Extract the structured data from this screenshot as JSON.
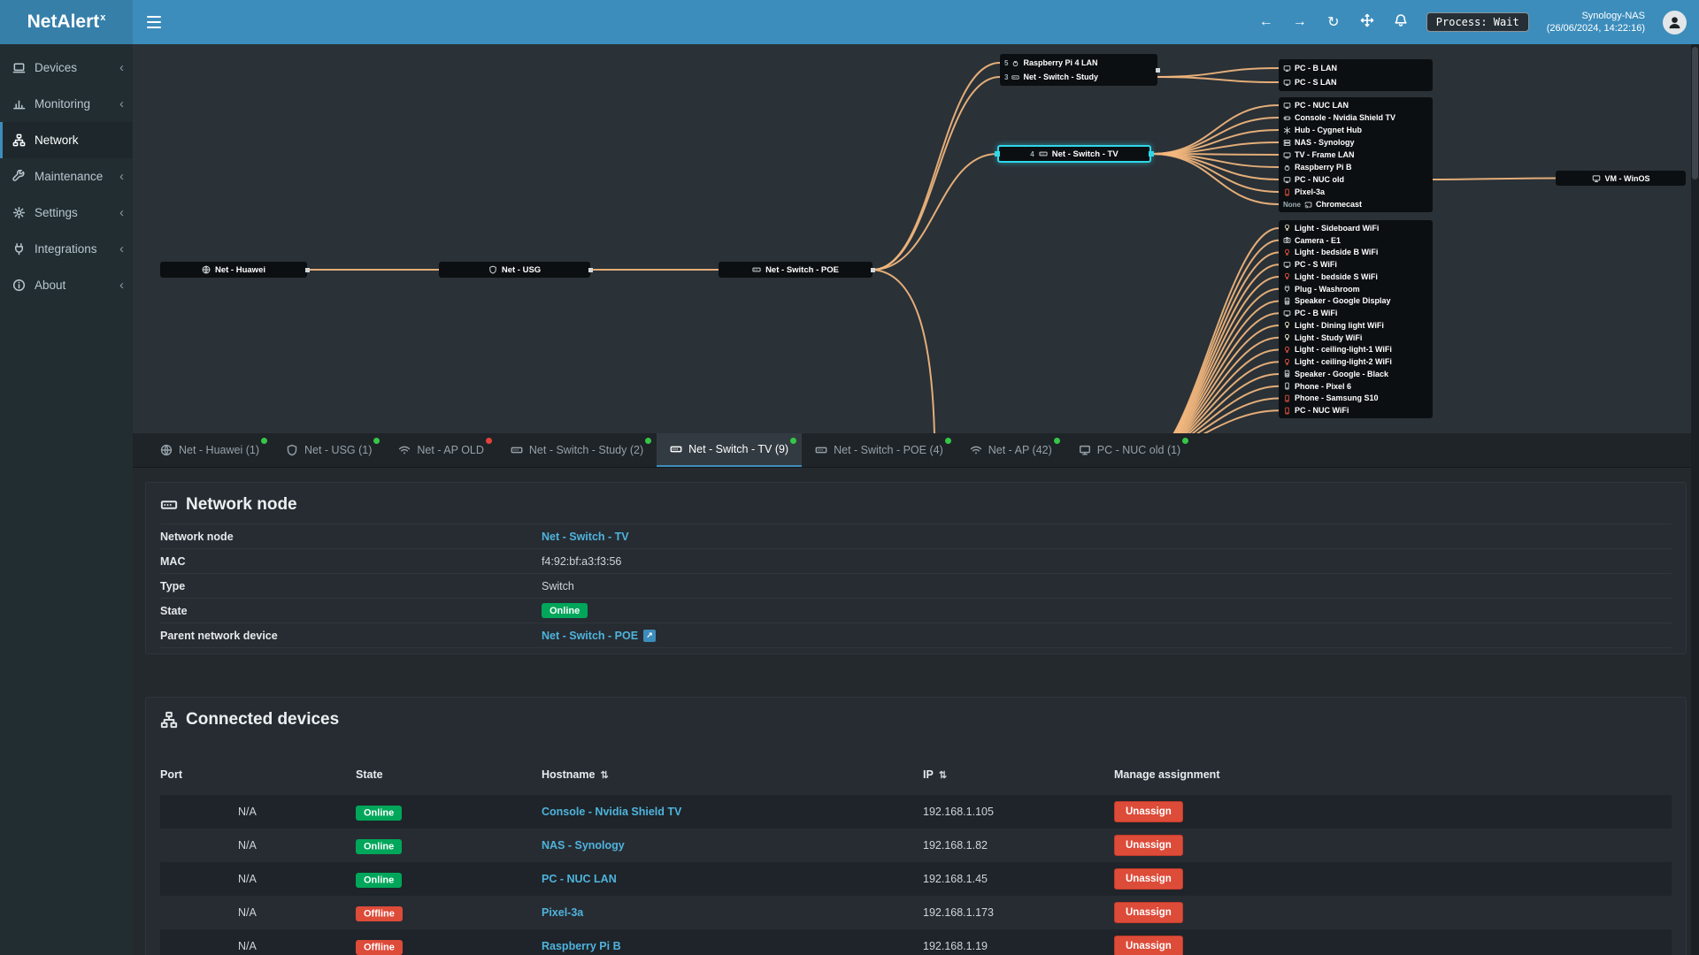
{
  "header": {
    "brand": "NetAlert",
    "brand_sup": "x",
    "nav": {
      "back": "←",
      "forward": "→",
      "refresh": "↻"
    },
    "process_label": "Process: Wait",
    "host_name": "Synology-NAS",
    "host_time": "(26/06/2024, 14:22:16)"
  },
  "sidebar": {
    "items": [
      {
        "label": "Devices",
        "icon_ref": "#i-devices",
        "chevron": "‹",
        "active": "false"
      },
      {
        "label": "Monitoring",
        "icon_ref": "#i-chart",
        "chevron": "‹",
        "active": "false"
      },
      {
        "label": "Network",
        "icon_ref": "#i-sitemap",
        "chevron": "",
        "active": "true"
      },
      {
        "label": "Maintenance",
        "icon_ref": "#i-wrench",
        "chevron": "‹",
        "active": "false"
      },
      {
        "label": "Settings",
        "icon_ref": "#i-gear",
        "chevron": "‹",
        "active": "false"
      },
      {
        "label": "Integrations",
        "icon_ref": "#i-plug",
        "chevron": "‹",
        "active": "false"
      },
      {
        "label": "About",
        "icon_ref": "#i-info",
        "chevron": "‹",
        "active": "false"
      }
    ]
  },
  "diagram": {
    "edge_color": "#f3b77e",
    "highlight_color": "#2fd7e9",
    "chain": [
      {
        "label": "Net - Huawei",
        "icon_ref": "#i-globe"
      },
      {
        "label": "Net - USG",
        "icon_ref": "#i-shield"
      },
      {
        "label": "Net - Switch - POE",
        "icon_ref": "#i-switch"
      }
    ],
    "highlight_node": {
      "port": "4",
      "label": "Net - Switch - TV",
      "icon_ref": "#i-switch"
    },
    "study_box": [
      {
        "port": "5",
        "label": "Raspberry Pi 4 LAN",
        "icon_ref": "#i-pi"
      },
      {
        "port": "3",
        "label": "Net - Switch - Study",
        "icon_ref": "#i-switch"
      }
    ],
    "lan_box": [
      {
        "label": "PC - B LAN",
        "icon_ref": "#i-desktop"
      },
      {
        "label": "PC - S LAN",
        "icon_ref": "#i-desktop"
      }
    ],
    "tv_box": [
      {
        "label": "PC - NUC LAN",
        "icon_ref": "#i-desktop"
      },
      {
        "label": "Console - Nvidia Shield TV",
        "icon_ref": "#i-gamepad"
      },
      {
        "label": "Hub - Cygnet Hub",
        "icon_ref": "#i-hub"
      },
      {
        "label": "NAS - Synology",
        "icon_ref": "#i-nas"
      },
      {
        "label": "TV - Frame LAN",
        "icon_ref": "#i-tv"
      },
      {
        "label": "Raspberry Pi B",
        "icon_ref": "#i-pi"
      },
      {
        "label": "PC - NUC old",
        "icon_ref": "#i-desktop"
      },
      {
        "label": "Pixel-3a",
        "icon_ref": "#i-phone",
        "icon_style": "color:#e25041"
      },
      {
        "port": "None",
        "label": "Chromecast",
        "icon_ref": "#i-cast"
      }
    ],
    "vm_node": {
      "label": "VM - WinOS",
      "icon_ref": "#i-desktop"
    },
    "wifi_box": [
      {
        "label": "Light - Sideboard WiFi",
        "icon_ref": "#i-bulb",
        "icon_style": "color:#e8e3c9"
      },
      {
        "label": "Camera - E1",
        "icon_ref": "#i-camera"
      },
      {
        "label": "Light - bedside B WiFi",
        "icon_ref": "#i-bulb",
        "icon_style": "color:#e25041"
      },
      {
        "label": "PC - S WiFi",
        "icon_ref": "#i-desktop"
      },
      {
        "label": "Light - bedside S WiFi",
        "icon_ref": "#i-bulb",
        "icon_style": "color:#e25041"
      },
      {
        "label": "Plug - Washroom",
        "icon_ref": "#i-plug"
      },
      {
        "label": "Speaker - Google Display",
        "icon_ref": "#i-speaker"
      },
      {
        "label": "PC - B WiFi",
        "icon_ref": "#i-desktop"
      },
      {
        "label": "Light - Dining light WiFi",
        "icon_ref": "#i-bulb",
        "icon_style": "color:#e8e3c9"
      },
      {
        "label": "Light - Study WiFi",
        "icon_ref": "#i-bulb",
        "icon_style": "color:#e8e3c9"
      },
      {
        "label": "Light - ceiling-light-1 WiFi",
        "icon_ref": "#i-bulb",
        "icon_style": "color:#e25041"
      },
      {
        "label": "Light - ceiling-light-2 WiFi",
        "icon_ref": "#i-bulb",
        "icon_style": "color:#e25041"
      },
      {
        "label": "Speaker - Google - Black",
        "icon_ref": "#i-speaker"
      },
      {
        "label": "Phone - Pixel 6",
        "icon_ref": "#i-phone"
      },
      {
        "label": "Phone - Samsung S10",
        "icon_ref": "#i-phone",
        "icon_style": "color:#e25041"
      },
      {
        "label": "PC - NUC WiFi",
        "icon_ref": "#i-phone",
        "icon_style": "color:#e25041"
      }
    ]
  },
  "tabs": [
    {
      "label": "Net - Huawei (1)",
      "icon_ref": "#i-globe",
      "dot": "green",
      "active": "false"
    },
    {
      "label": "Net - USG (1)",
      "icon_ref": "#i-shield",
      "dot": "green",
      "active": "false"
    },
    {
      "label": "Net - AP OLD",
      "icon_ref": "#i-wifi",
      "dot": "red",
      "active": "false"
    },
    {
      "label": "Net - Switch - Study (2)",
      "icon_ref": "#i-switch",
      "dot": "green",
      "active": "false"
    },
    {
      "label": "Net - Switch - TV (9)",
      "icon_ref": "#i-switch",
      "dot": "green",
      "active": "true"
    },
    {
      "label": "Net - Switch - POE (4)",
      "icon_ref": "#i-switch",
      "dot": "green",
      "active": "false"
    },
    {
      "label": "Net - AP (42)",
      "icon_ref": "#i-wifi",
      "dot": "green",
      "active": "false"
    },
    {
      "label": "PC - NUC old (1)",
      "icon_ref": "#i-desktop",
      "dot": "green",
      "active": "false"
    }
  ],
  "node_section": {
    "title": "Network node",
    "fields": [
      {
        "label": "Network node",
        "value": "Net - Switch - TV",
        "variant": "link",
        "clickable": "true"
      },
      {
        "label": "MAC",
        "value": "f4:92:bf:a3:f3:56",
        "variant": "text",
        "clickable": "false"
      },
      {
        "label": "Type",
        "value": "Switch",
        "variant": "text",
        "clickable": "false"
      },
      {
        "label": "State",
        "value": "Online",
        "variant": "badge-online",
        "clickable": "false"
      },
      {
        "label": "Parent network device",
        "value": "Net - Switch - POE",
        "variant": "link",
        "clickable": "true",
        "ext_glyph": "↗"
      }
    ]
  },
  "devices_section": {
    "title": "Connected devices",
    "columns": [
      {
        "label": "Port"
      },
      {
        "label": "State"
      },
      {
        "label": "Hostname",
        "sort": "⇅"
      },
      {
        "label": "IP",
        "sort": "⇅"
      },
      {
        "label": "Manage assignment"
      }
    ],
    "rows": [
      {
        "port": "N/A",
        "state": "Online",
        "hostname": "Console - Nvidia Shield TV",
        "ip": "192.168.1.105",
        "action": "Unassign"
      },
      {
        "port": "N/A",
        "state": "Online",
        "hostname": "NAS - Synology",
        "ip": "192.168.1.82",
        "action": "Unassign"
      },
      {
        "port": "N/A",
        "state": "Online",
        "hostname": "PC - NUC LAN",
        "ip": "192.168.1.45",
        "action": "Unassign"
      },
      {
        "port": "N/A",
        "state": "Offline",
        "hostname": "Pixel-3a",
        "ip": "192.168.1.173",
        "action": "Unassign"
      },
      {
        "port": "N/A",
        "state": "Offline",
        "hostname": "Raspberry Pi B",
        "ip": "192.168.1.19",
        "action": "Unassign"
      }
    ]
  }
}
